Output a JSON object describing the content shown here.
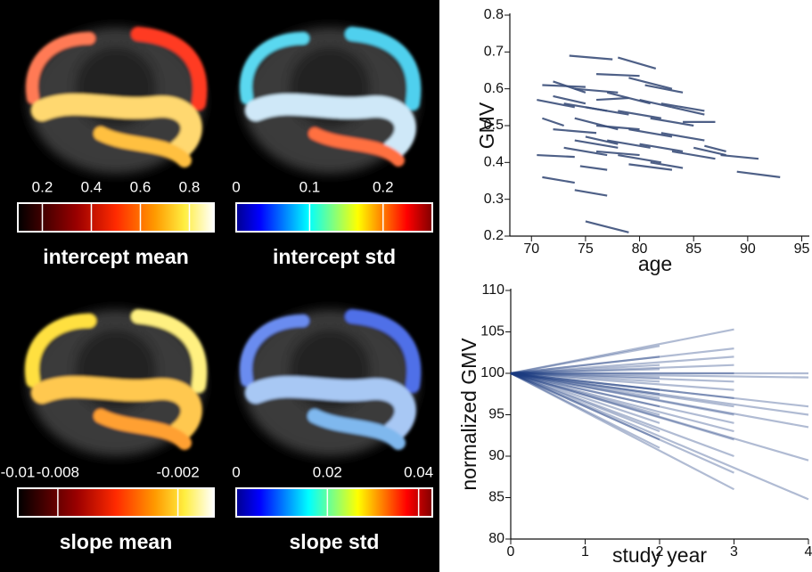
{
  "panels": [
    {
      "label": "intercept mean",
      "colorbar": {
        "colormap": "hot",
        "lim": [
          0.1,
          0.9
        ],
        "ticks": [
          0.2,
          0.4,
          0.6,
          0.8
        ]
      }
    },
    {
      "label": "intercept std",
      "colorbar": {
        "colormap": "jet",
        "lim": [
          0,
          0.267
        ],
        "ticks": [
          0,
          0.1,
          0.2
        ]
      }
    },
    {
      "label": "slope mean",
      "colorbar": {
        "colormap": "hot",
        "lim": [
          -0.01,
          -0.0002
        ],
        "ticks": [
          -0.01,
          -0.008,
          -0.002
        ]
      }
    },
    {
      "label": "slope std",
      "colorbar": {
        "colormap": "jet",
        "lim": [
          0,
          0.043
        ],
        "ticks": [
          0,
          0.02,
          0.04
        ]
      }
    }
  ],
  "chart_data": [
    {
      "type": "line",
      "x_label": "age",
      "y_label": "GMV",
      "color": "#3b4f7a",
      "alpha": 0.9,
      "xlim": [
        68,
        95.7
      ],
      "xticks": [
        70,
        75,
        80,
        85,
        90,
        95
      ],
      "ylim": [
        0.2,
        0.8
      ],
      "yticks": [
        0.2,
        0.3,
        0.4,
        0.5,
        0.6,
        0.7,
        0.8
      ],
      "series": [
        {
          "x": [
            73.5,
            77.5
          ],
          "values": [
            0.69,
            0.68
          ]
        },
        {
          "x": [
            78,
            81.5
          ],
          "values": [
            0.685,
            0.655
          ]
        },
        {
          "x": [
            76,
            80
          ],
          "values": [
            0.64,
            0.635
          ]
        },
        {
          "x": [
            79,
            83
          ],
          "values": [
            0.63,
            0.6
          ]
        },
        {
          "x": [
            71,
            75
          ],
          "values": [
            0.61,
            0.605
          ]
        },
        {
          "x": [
            72,
            75
          ],
          "values": [
            0.62,
            0.59
          ]
        },
        {
          "x": [
            80.5,
            84
          ],
          "values": [
            0.61,
            0.59
          ]
        },
        {
          "x": [
            74,
            78
          ],
          "values": [
            0.6,
            0.59
          ]
        },
        {
          "x": [
            77,
            81
          ],
          "values": [
            0.59,
            0.56
          ]
        },
        {
          "x": [
            82,
            86
          ],
          "values": [
            0.56,
            0.54
          ]
        },
        {
          "x": [
            83,
            86
          ],
          "values": [
            0.55,
            0.53
          ]
        },
        {
          "x": [
            70.5,
            74
          ],
          "values": [
            0.57,
            0.55
          ]
        },
        {
          "x": [
            73,
            77
          ],
          "values": [
            0.56,
            0.54
          ]
        },
        {
          "x": [
            75,
            79
          ],
          "values": [
            0.55,
            0.53
          ]
        },
        {
          "x": [
            78,
            82
          ],
          "values": [
            0.54,
            0.52
          ]
        },
        {
          "x": [
            81,
            85
          ],
          "values": [
            0.52,
            0.5
          ]
        },
        {
          "x": [
            84,
            87
          ],
          "values": [
            0.51,
            0.51
          ]
        },
        {
          "x": [
            71,
            73
          ],
          "values": [
            0.52,
            0.5
          ]
        },
        {
          "x": [
            74,
            78
          ],
          "values": [
            0.52,
            0.49
          ]
        },
        {
          "x": [
            76,
            80
          ],
          "values": [
            0.5,
            0.49
          ]
        },
        {
          "x": [
            79,
            83
          ],
          "values": [
            0.49,
            0.47
          ]
        },
        {
          "x": [
            82,
            86
          ],
          "values": [
            0.48,
            0.46
          ]
        },
        {
          "x": [
            72,
            76
          ],
          "values": [
            0.49,
            0.48
          ]
        },
        {
          "x": [
            75,
            78
          ],
          "values": [
            0.47,
            0.45
          ]
        },
        {
          "x": [
            77,
            81
          ],
          "values": [
            0.46,
            0.44
          ]
        },
        {
          "x": [
            80,
            84
          ],
          "values": [
            0.45,
            0.43
          ]
        },
        {
          "x": [
            85,
            88
          ],
          "values": [
            0.44,
            0.42
          ]
        },
        {
          "x": [
            86,
            88
          ],
          "values": [
            0.445,
            0.43
          ]
        },
        {
          "x": [
            73,
            77
          ],
          "values": [
            0.44,
            0.42
          ]
        },
        {
          "x": [
            76,
            80
          ],
          "values": [
            0.43,
            0.42
          ]
        },
        {
          "x": [
            70.5,
            74
          ],
          "values": [
            0.42,
            0.415
          ]
        },
        {
          "x": [
            78,
            82
          ],
          "values": [
            0.42,
            0.4
          ]
        },
        {
          "x": [
            81,
            84
          ],
          "values": [
            0.4,
            0.385
          ]
        },
        {
          "x": [
            79,
            83
          ],
          "values": [
            0.395,
            0.38
          ]
        },
        {
          "x": [
            87.5,
            91
          ],
          "values": [
            0.42,
            0.41
          ]
        },
        {
          "x": [
            89,
            93
          ],
          "values": [
            0.375,
            0.36
          ]
        },
        {
          "x": [
            71,
            74
          ],
          "values": [
            0.36,
            0.345
          ]
        },
        {
          "x": [
            74,
            77
          ],
          "values": [
            0.325,
            0.31
          ]
        },
        {
          "x": [
            75,
            79
          ],
          "values": [
            0.24,
            0.21
          ]
        },
        {
          "x": [
            74.5,
            77
          ],
          "values": [
            0.39,
            0.38
          ]
        },
        {
          "x": [
            83,
            87
          ],
          "values": [
            0.43,
            0.41
          ]
        },
        {
          "x": [
            72,
            75
          ],
          "values": [
            0.58,
            0.56
          ]
        },
        {
          "x": [
            76,
            79
          ],
          "values": [
            0.57,
            0.575
          ]
        },
        {
          "x": [
            80,
            83
          ],
          "values": [
            0.57,
            0.55
          ]
        },
        {
          "x": [
            74,
            78
          ],
          "values": [
            0.46,
            0.44
          ]
        }
      ]
    },
    {
      "type": "line",
      "x_label": "study year",
      "y_label": "normalized GMV",
      "color": "#1e3d80",
      "alpha": 0.35,
      "xlim": [
        0,
        4
      ],
      "xticks": [
        0,
        1,
        2,
        3,
        4
      ],
      "ylim": [
        80,
        110
      ],
      "yticks": [
        80,
        85,
        90,
        95,
        100,
        105,
        110
      ],
      "series": [
        {
          "x": [
            0,
            2
          ],
          "values": [
            100,
            103.3
          ]
        },
        {
          "x": [
            0,
            2
          ],
          "values": [
            100,
            102
          ]
        },
        {
          "x": [
            0,
            2
          ],
          "values": [
            100,
            101
          ]
        },
        {
          "x": [
            0,
            2
          ],
          "values": [
            100,
            100.5
          ]
        },
        {
          "x": [
            0,
            2
          ],
          "values": [
            100,
            99.5
          ]
        },
        {
          "x": [
            0,
            2
          ],
          "values": [
            100,
            99
          ]
        },
        {
          "x": [
            0,
            2
          ],
          "values": [
            100,
            98
          ]
        },
        {
          "x": [
            0,
            2
          ],
          "values": [
            100,
            97.5
          ]
        },
        {
          "x": [
            0,
            2
          ],
          "values": [
            100,
            97
          ]
        },
        {
          "x": [
            0,
            2
          ],
          "values": [
            100,
            96
          ]
        },
        {
          "x": [
            0,
            2
          ],
          "values": [
            100,
            95
          ]
        },
        {
          "x": [
            0,
            2
          ],
          "values": [
            100,
            94
          ]
        },
        {
          "x": [
            0,
            2
          ],
          "values": [
            100,
            93
          ]
        },
        {
          "x": [
            0,
            2
          ],
          "values": [
            100,
            92
          ]
        },
        {
          "x": [
            0,
            2
          ],
          "values": [
            100,
            91
          ]
        },
        {
          "x": [
            0,
            3
          ],
          "values": [
            100,
            105.3
          ]
        },
        {
          "x": [
            0,
            3
          ],
          "values": [
            100,
            103
          ]
        },
        {
          "x": [
            0,
            3
          ],
          "values": [
            100,
            102
          ]
        },
        {
          "x": [
            0,
            3
          ],
          "values": [
            100,
            101
          ]
        },
        {
          "x": [
            0,
            3
          ],
          "values": [
            100,
            100
          ]
        },
        {
          "x": [
            0,
            3
          ],
          "values": [
            100,
            99
          ]
        },
        {
          "x": [
            0,
            3
          ],
          "values": [
            100,
            98
          ]
        },
        {
          "x": [
            0,
            3
          ],
          "values": [
            100,
            97
          ]
        },
        {
          "x": [
            0,
            3
          ],
          "values": [
            100,
            96
          ]
        },
        {
          "x": [
            0,
            3
          ],
          "values": [
            100,
            95
          ]
        },
        {
          "x": [
            0,
            3
          ],
          "values": [
            100,
            94
          ]
        },
        {
          "x": [
            0,
            3
          ],
          "values": [
            100,
            93
          ]
        },
        {
          "x": [
            0,
            3
          ],
          "values": [
            100,
            92
          ]
        },
        {
          "x": [
            0,
            3
          ],
          "values": [
            100,
            90
          ]
        },
        {
          "x": [
            0,
            3
          ],
          "values": [
            100,
            88
          ]
        },
        {
          "x": [
            0,
            3
          ],
          "values": [
            100,
            86
          ]
        },
        {
          "x": [
            0,
            4
          ],
          "values": [
            100,
            100
          ]
        },
        {
          "x": [
            0,
            4
          ],
          "values": [
            100,
            99.5
          ]
        },
        {
          "x": [
            0,
            4
          ],
          "values": [
            100,
            96
          ]
        },
        {
          "x": [
            0,
            4
          ],
          "values": [
            100,
            95
          ]
        },
        {
          "x": [
            0,
            4
          ],
          "values": [
            100,
            93.5
          ]
        },
        {
          "x": [
            0,
            4
          ],
          "values": [
            100,
            89.5
          ]
        },
        {
          "x": [
            0,
            4
          ],
          "values": [
            100,
            84.8
          ]
        }
      ]
    }
  ]
}
